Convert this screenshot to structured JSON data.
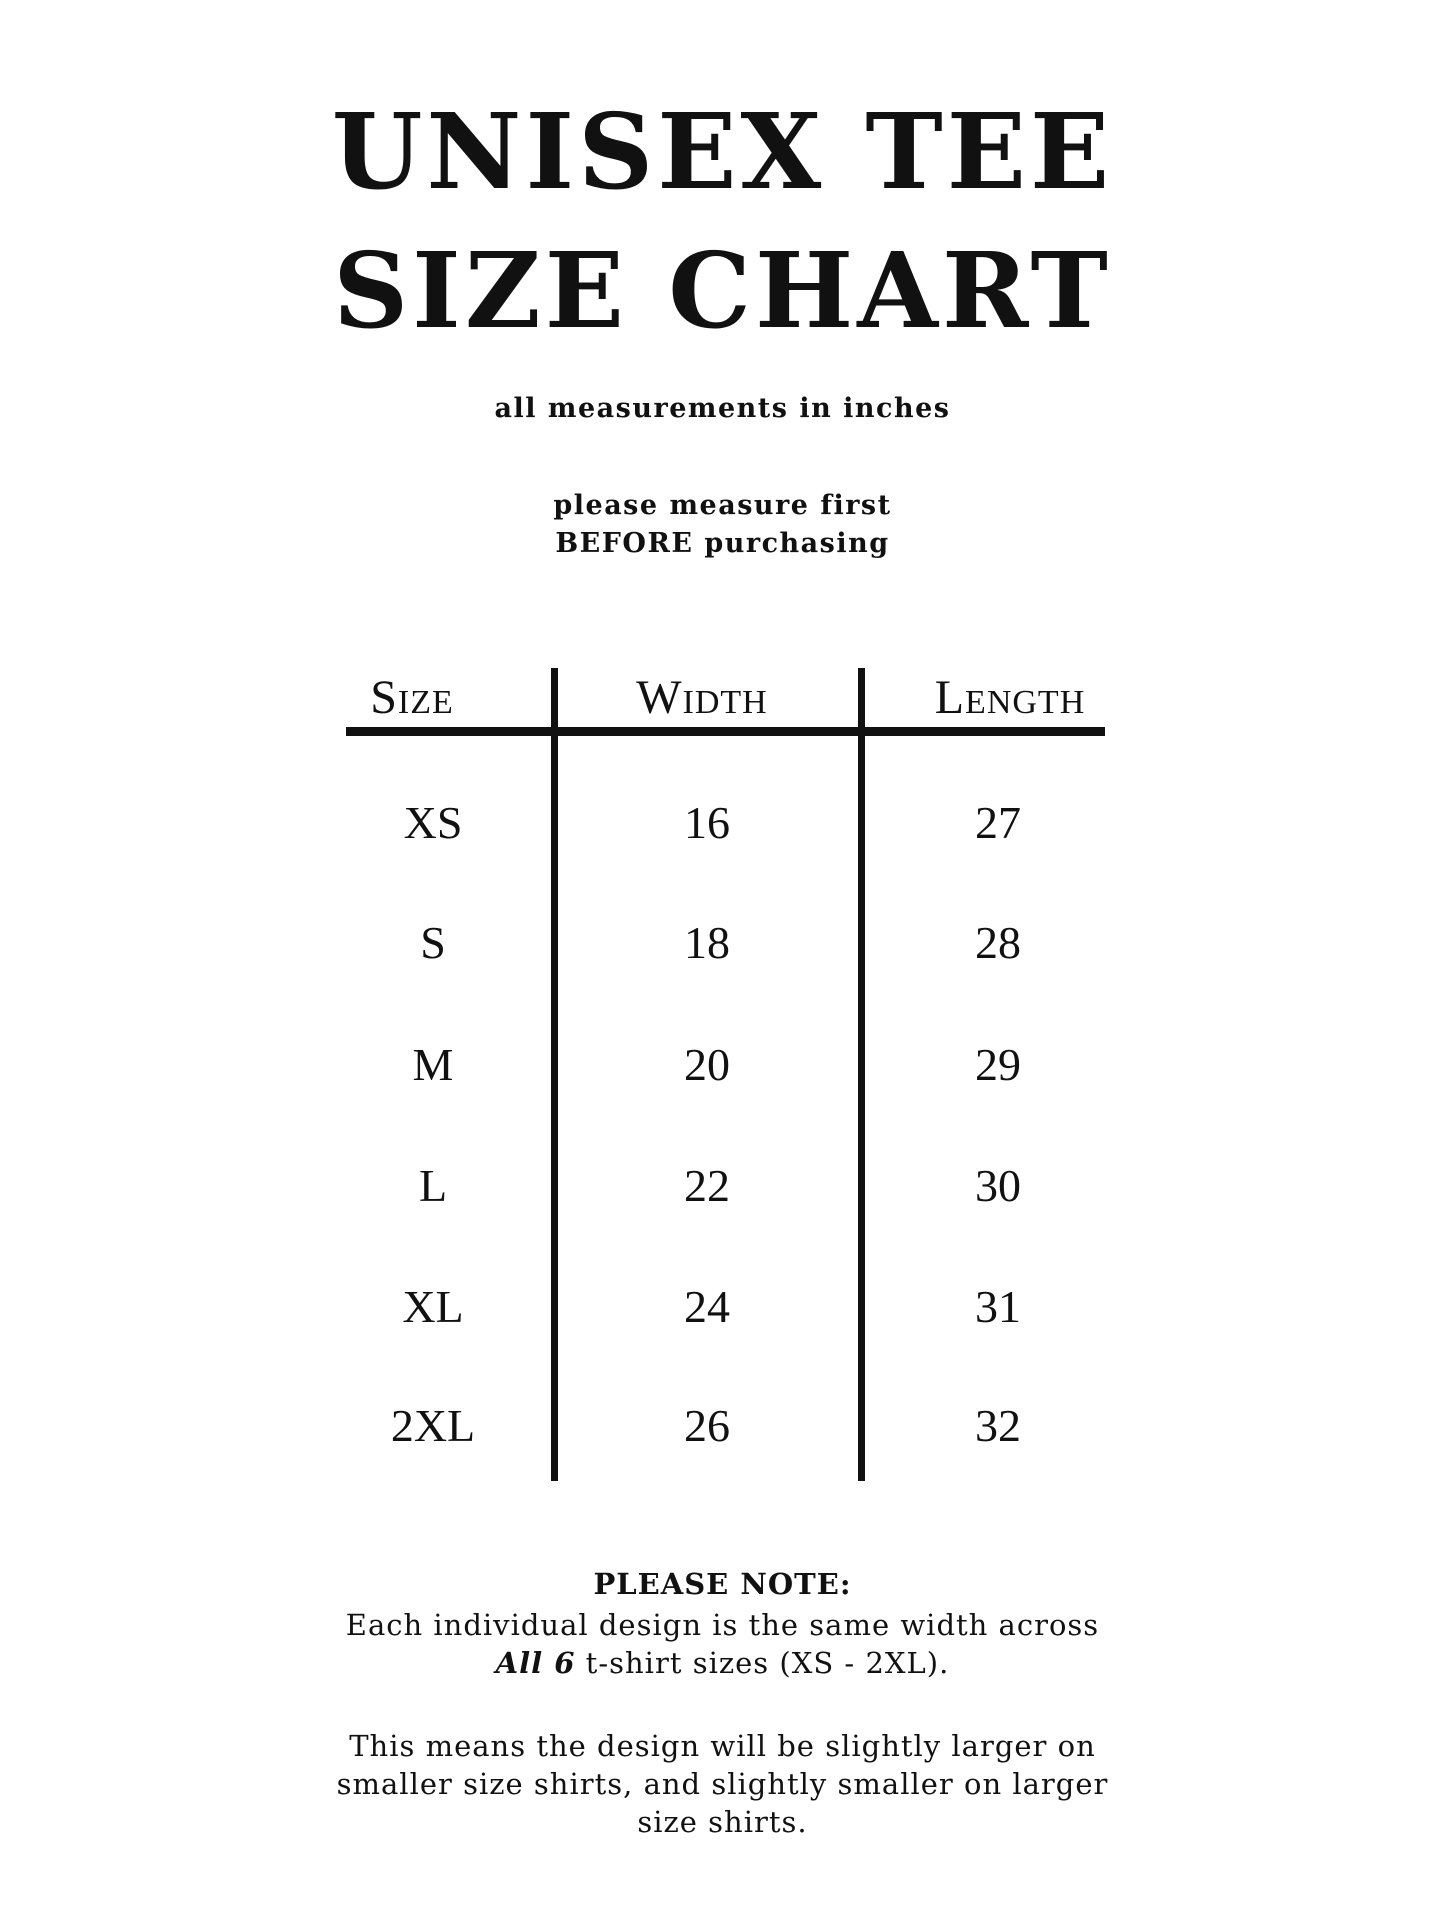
{
  "title": {
    "line1": "UNISEX TEE",
    "line2": "SIZE CHART"
  },
  "subtitle": "all measurements in inches",
  "measure_note": {
    "line1": "please measure first",
    "line2_bold": "BEFORE",
    "line2_rest": " purchasing"
  },
  "table": {
    "headers": [
      "Size",
      "Width",
      "Length"
    ],
    "rows": [
      {
        "size": "XS",
        "width": "16",
        "length": "27"
      },
      {
        "size": "S",
        "width": "18",
        "length": "28"
      },
      {
        "size": "M",
        "width": "20",
        "length": "29"
      },
      {
        "size": "L",
        "width": "22",
        "length": "30"
      },
      {
        "size": "XL",
        "width": "24",
        "length": "31"
      },
      {
        "size": "2XL",
        "width": "26",
        "length": "32"
      }
    ]
  },
  "please_note": {
    "heading": "PLEASE NOTE:",
    "line1": "Each individual design is the same width across",
    "line2_italic": "All 6",
    "line2_rest": " t-shirt sizes (XS - 2XL).",
    "para2": [
      "This means the design will be slightly larger on",
      "smaller size shirts, and slightly smaller on larger",
      "size shirts."
    ]
  }
}
